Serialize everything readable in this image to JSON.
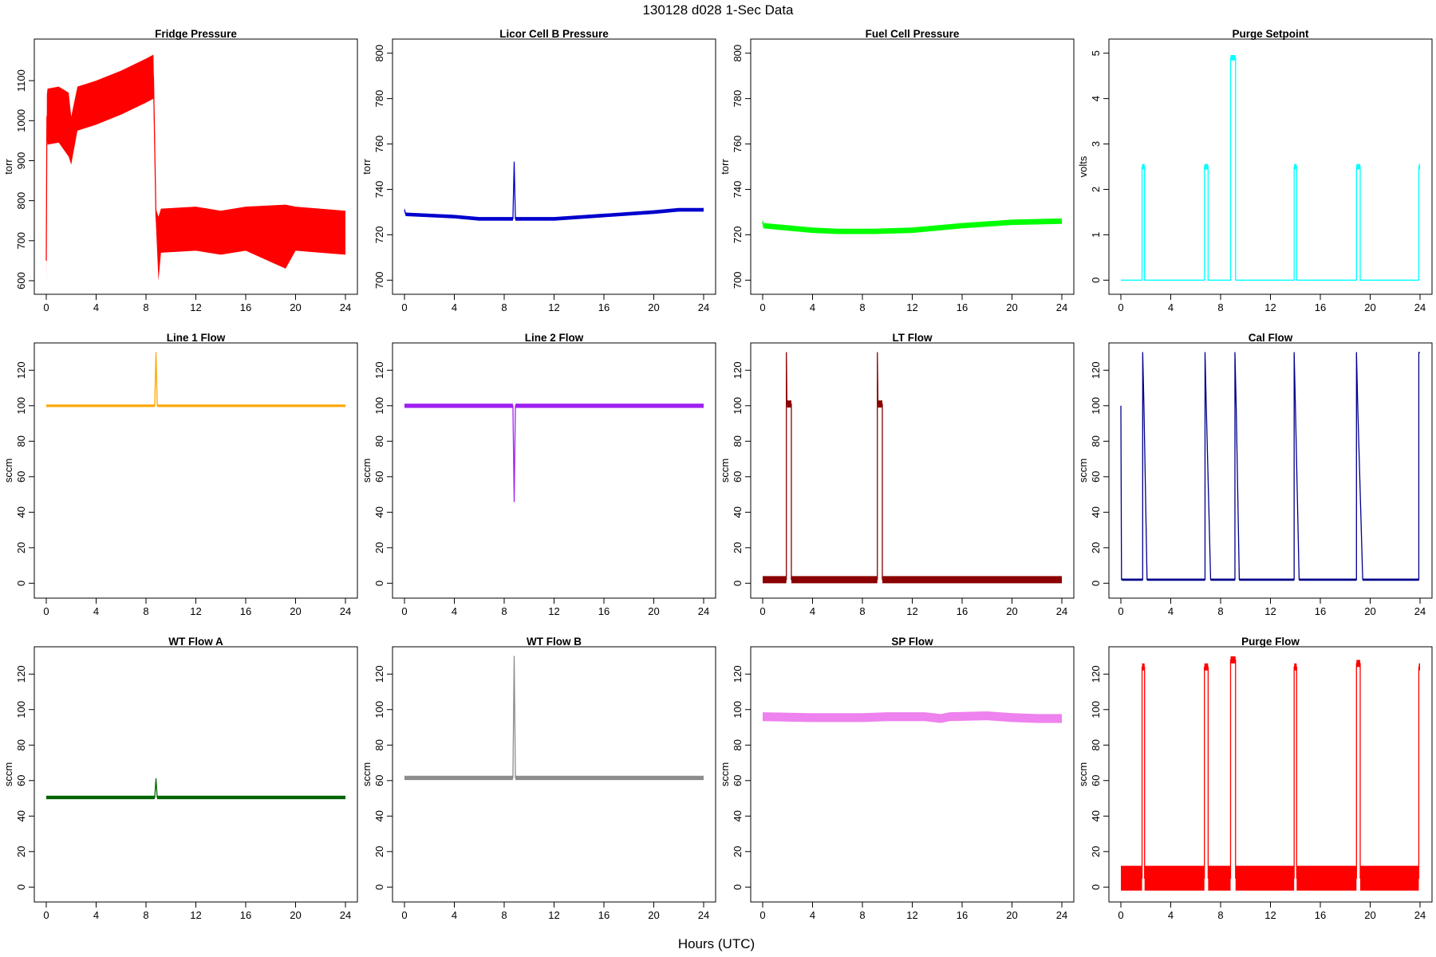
{
  "figure": {
    "title": "130128   d028   1-Sec Data",
    "xlabel": "Hours (UTC)"
  },
  "chart_data": [
    {
      "type": "line",
      "title": "Fridge Pressure",
      "ylabel": "torr",
      "color": "#ff0000",
      "xlim": [
        0,
        24
      ],
      "ylim": [
        590,
        1180
      ],
      "xticks": [
        0,
        4,
        8,
        12,
        16,
        20,
        24
      ],
      "yticks": [
        600,
        700,
        800,
        900,
        1000,
        1100
      ],
      "series": [
        {
          "x": [
            0,
            0.05,
            0.1,
            1,
            1.8,
            2,
            2.5,
            4,
            6,
            8,
            8.6,
            8.8,
            9.0,
            9.2,
            12,
            14,
            16,
            19.2,
            20,
            24
          ],
          "y": [
            650,
            1010,
            1010,
            1015,
            990,
            950,
            1030,
            1045,
            1070,
            1100,
            1110,
            760,
            680,
            725,
            730,
            720,
            730,
            710,
            730,
            720
          ],
          "band": [
            55,
            55,
            70,
            70,
            80,
            60,
            55,
            55,
            55,
            55,
            55,
            20,
            80,
            55,
            55,
            55,
            55,
            80,
            55,
            55
          ]
        }
      ]
    },
    {
      "type": "line",
      "title": "Licor Cell B Pressure",
      "ylabel": "torr",
      "color": "#0000cd",
      "xlim": [
        0,
        24
      ],
      "ylim": [
        698,
        802
      ],
      "xticks": [
        0,
        4,
        8,
        12,
        16,
        20,
        24
      ],
      "yticks": [
        700,
        720,
        740,
        760,
        780,
        800
      ],
      "series": [
        {
          "x": [
            0,
            0.1,
            4,
            6,
            8.7,
            8.8,
            8.9,
            12,
            16,
            20,
            22,
            24
          ],
          "y": [
            731,
            729,
            728,
            727,
            727,
            752,
            727,
            727,
            728.5,
            730,
            731,
            731
          ],
          "band": [
            0.8,
            0.8,
            0.8,
            0.8,
            0.8,
            0.8,
            0.8,
            0.8,
            0.8,
            0.8,
            0.8,
            0.8
          ]
        }
      ]
    },
    {
      "type": "line",
      "title": "Fuel Cell Pressure",
      "ylabel": "torr",
      "color": "#00ff00",
      "xlim": [
        0,
        24
      ],
      "ylim": [
        698,
        802
      ],
      "xticks": [
        0,
        4,
        8,
        12,
        16,
        20,
        24
      ],
      "yticks": [
        700,
        720,
        740,
        760,
        780,
        800
      ],
      "series": [
        {
          "x": [
            0,
            0.05,
            2,
            4,
            6,
            9,
            12,
            16,
            20,
            24
          ],
          "y": [
            726,
            724,
            723,
            722,
            721.5,
            721.5,
            722,
            724,
            725.5,
            726
          ],
          "band": [
            1.2,
            1.2,
            1.2,
            1.2,
            1.2,
            1.2,
            1.2,
            1.2,
            1.2,
            1.2
          ]
        }
      ]
    },
    {
      "type": "line",
      "title": "Purge Setpoint",
      "ylabel": "volts",
      "color": "#00ffff",
      "xlim": [
        0,
        24
      ],
      "ylim": [
        -0.1,
        5.1
      ],
      "xticks": [
        0,
        4,
        8,
        12,
        16,
        20,
        24
      ],
      "yticks": [
        0,
        1,
        2,
        3,
        4,
        5
      ],
      "series": [
        {
          "x": [
            0,
            1.7,
            1.7,
            1.9,
            1.9,
            6.7,
            6.7,
            7.0,
            7.0,
            8.8,
            8.8,
            9.2,
            9.2,
            13.9,
            13.9,
            14.1,
            14.1,
            18.9,
            18.9,
            19.2,
            19.2,
            23.9,
            23.9,
            24
          ],
          "y": [
            0,
            0,
            2.5,
            2.5,
            0,
            0,
            2.5,
            2.5,
            0,
            0,
            4.9,
            4.9,
            0,
            0,
            2.5,
            2.5,
            0,
            0,
            2.5,
            2.5,
            0,
            0,
            2.5,
            2.5
          ],
          "band": [
            0,
            0,
            0.06,
            0.06,
            0,
            0,
            0.06,
            0.06,
            0,
            0,
            0.06,
            0.06,
            0,
            0,
            0.06,
            0.06,
            0,
            0,
            0.06,
            0.06,
            0,
            0,
            0.06,
            0.06
          ]
        }
      ]
    },
    {
      "type": "line",
      "title": "Line 1 Flow",
      "ylabel": "sccm",
      "color": "#ffa500",
      "xlim": [
        0,
        24
      ],
      "ylim": [
        -3,
        130
      ],
      "xticks": [
        0,
        4,
        8,
        12,
        16,
        20,
        24
      ],
      "yticks": [
        0,
        20,
        40,
        60,
        80,
        100,
        120
      ],
      "series": [
        {
          "x": [
            0,
            8.7,
            8.8,
            8.9,
            24
          ],
          "y": [
            100,
            100,
            130,
            100,
            100
          ],
          "band": [
            0.7,
            0.7,
            0.7,
            0.7,
            0.7
          ]
        }
      ]
    },
    {
      "type": "line",
      "title": "Line 2 Flow",
      "ylabel": "sccm",
      "color": "#a020f0",
      "xlim": [
        0,
        24
      ],
      "ylim": [
        -3,
        130
      ],
      "xticks": [
        0,
        4,
        8,
        12,
        16,
        20,
        24
      ],
      "yticks": [
        0,
        20,
        40,
        60,
        80,
        100,
        120
      ],
      "series": [
        {
          "x": [
            0,
            8.7,
            8.8,
            8.9,
            24
          ],
          "y": [
            100,
            100,
            46,
            100,
            100
          ],
          "band": [
            1.2,
            1.2,
            1.2,
            1.2,
            1.2
          ]
        }
      ]
    },
    {
      "type": "line",
      "title": "LT Flow",
      "ylabel": "sccm",
      "color": "#8b0000",
      "xlim": [
        0,
        24
      ],
      "ylim": [
        -3,
        130
      ],
      "xticks": [
        0,
        4,
        8,
        12,
        16,
        20,
        24
      ],
      "yticks": [
        0,
        20,
        40,
        60,
        80,
        100,
        120
      ],
      "series": [
        {
          "x": [
            0,
            1.9,
            1.9,
            1.95,
            2.0,
            2.3,
            2.3,
            9.2,
            9.2,
            9.25,
            9.3,
            9.6,
            9.6,
            24
          ],
          "y": [
            2,
            2,
            130,
            101,
            101,
            101,
            2,
            2,
            130,
            101,
            101,
            101,
            2,
            2
          ],
          "band": [
            2,
            2,
            0,
            2,
            2,
            2,
            2,
            2,
            0,
            2,
            2,
            2,
            2,
            2
          ]
        }
      ]
    },
    {
      "type": "line",
      "title": "Cal Flow",
      "ylabel": "sccm",
      "color": "#00008b",
      "xlim": [
        0,
        24
      ],
      "ylim": [
        -3,
        130
      ],
      "xticks": [
        0,
        4,
        8,
        12,
        16,
        20,
        24
      ],
      "yticks": [
        0,
        20,
        40,
        60,
        80,
        100,
        120
      ],
      "series": [
        {
          "x": [
            0,
            0.05,
            0.1,
            1.75,
            1.75,
            1.85,
            2.1,
            6.75,
            6.75,
            6.85,
            7.2,
            9.15,
            9.15,
            9.25,
            9.5,
            13.9,
            13.9,
            14.0,
            14.3,
            18.9,
            18.9,
            19.0,
            19.4,
            23.9,
            23.9,
            24
          ],
          "y": [
            100,
            2,
            2,
            2,
            130,
            100,
            2,
            2,
            130,
            100,
            2,
            2,
            130,
            100,
            2,
            2,
            130,
            100,
            2,
            2,
            130,
            100,
            2,
            2,
            130,
            130
          ],
          "band": [
            0,
            0,
            0.6,
            0.6,
            0,
            0.6,
            0.6,
            0.6,
            0,
            0.6,
            0.6,
            0.6,
            0,
            0.6,
            0.6,
            0.6,
            0,
            0.6,
            0.6,
            0.6,
            0,
            0.6,
            0.6,
            0.6,
            0,
            0
          ]
        }
      ]
    },
    {
      "type": "line",
      "title": "WT Flow A",
      "ylabel": "sccm",
      "color": "#006400",
      "xlim": [
        0,
        24
      ],
      "ylim": [
        -3,
        130
      ],
      "xticks": [
        0,
        4,
        8,
        12,
        16,
        20,
        24
      ],
      "yticks": [
        0,
        20,
        40,
        60,
        80,
        100,
        120
      ],
      "series": [
        {
          "x": [
            0,
            8.7,
            8.8,
            8.9,
            24
          ],
          "y": [
            50.5,
            50.5,
            61,
            50.5,
            50.5
          ],
          "band": [
            1,
            1,
            1,
            1,
            1
          ]
        }
      ]
    },
    {
      "type": "line",
      "title": "WT Flow B",
      "ylabel": "sccm",
      "color": "#8c8c8c",
      "xlim": [
        0,
        24
      ],
      "ylim": [
        -3,
        130
      ],
      "xticks": [
        0,
        4,
        8,
        12,
        16,
        20,
        24
      ],
      "yticks": [
        0,
        20,
        40,
        60,
        80,
        100,
        120
      ],
      "series": [
        {
          "x": [
            0,
            8.7,
            8.8,
            8.9,
            24
          ],
          "y": [
            61.5,
            61.5,
            130,
            61.5,
            61.5
          ],
          "band": [
            1.2,
            1.2,
            1.2,
            1.2,
            1.2
          ]
        }
      ]
    },
    {
      "type": "line",
      "title": "SP Flow",
      "ylabel": "sccm",
      "color": "#ee82ee",
      "xlim": [
        0,
        24
      ],
      "ylim": [
        -3,
        130
      ],
      "xticks": [
        0,
        4,
        8,
        12,
        16,
        20,
        24
      ],
      "yticks": [
        0,
        20,
        40,
        60,
        80,
        100,
        120
      ],
      "series": [
        {
          "x": [
            0,
            4,
            8,
            10,
            13,
            14.3,
            15,
            18,
            20,
            22,
            24
          ],
          "y": [
            96,
            95.5,
            95.5,
            96,
            96,
            95,
            96,
            96.5,
            95.5,
            95,
            95
          ],
          "band": [
            2.5,
            2.5,
            2.5,
            2.5,
            2.5,
            2.5,
            2.5,
            2.5,
            2.5,
            2.5,
            2.5
          ]
        }
      ]
    },
    {
      "type": "line",
      "title": "Purge Flow",
      "ylabel": "sccm",
      "color": "#ff0000",
      "xlim": [
        0,
        24
      ],
      "ylim": [
        -3,
        130
      ],
      "xticks": [
        0,
        4,
        8,
        12,
        16,
        20,
        24
      ],
      "yticks": [
        0,
        20,
        40,
        60,
        80,
        100,
        120
      ],
      "series": [
        {
          "x": [
            0,
            1.7,
            1.7,
            1.9,
            1.9,
            6.7,
            6.7,
            7.0,
            7.0,
            8.8,
            8.8,
            9.2,
            9.2,
            13.9,
            13.9,
            14.1,
            14.1,
            18.9,
            18.9,
            19.2,
            19.2,
            23.9,
            23.9,
            24
          ],
          "y": [
            5,
            5,
            124,
            124,
            5,
            5,
            124,
            124,
            5,
            5,
            128,
            128,
            5,
            5,
            124,
            124,
            5,
            5,
            126,
            126,
            5,
            5,
            124,
            124
          ],
          "band": [
            7,
            7,
            2,
            2,
            7,
            7,
            2,
            2,
            7,
            7,
            2,
            2,
            7,
            7,
            2,
            2,
            7,
            7,
            2,
            2,
            7,
            7,
            2,
            2
          ]
        }
      ]
    }
  ]
}
